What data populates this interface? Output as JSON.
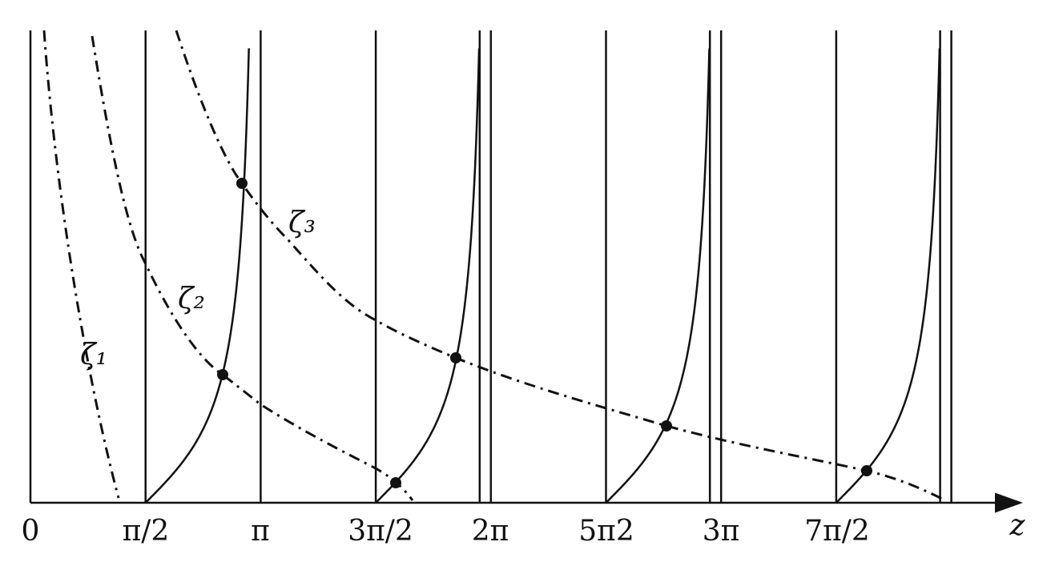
{
  "axis": {
    "label": "z",
    "ticks": [
      "0",
      "π/2",
      "π",
      "3π/2",
      "2π",
      "5π2",
      "3π",
      "7π/2"
    ]
  },
  "curves": [
    {
      "label": "ζ₁"
    },
    {
      "label": "ζ₂"
    },
    {
      "label": "ζ₃"
    }
  ]
}
